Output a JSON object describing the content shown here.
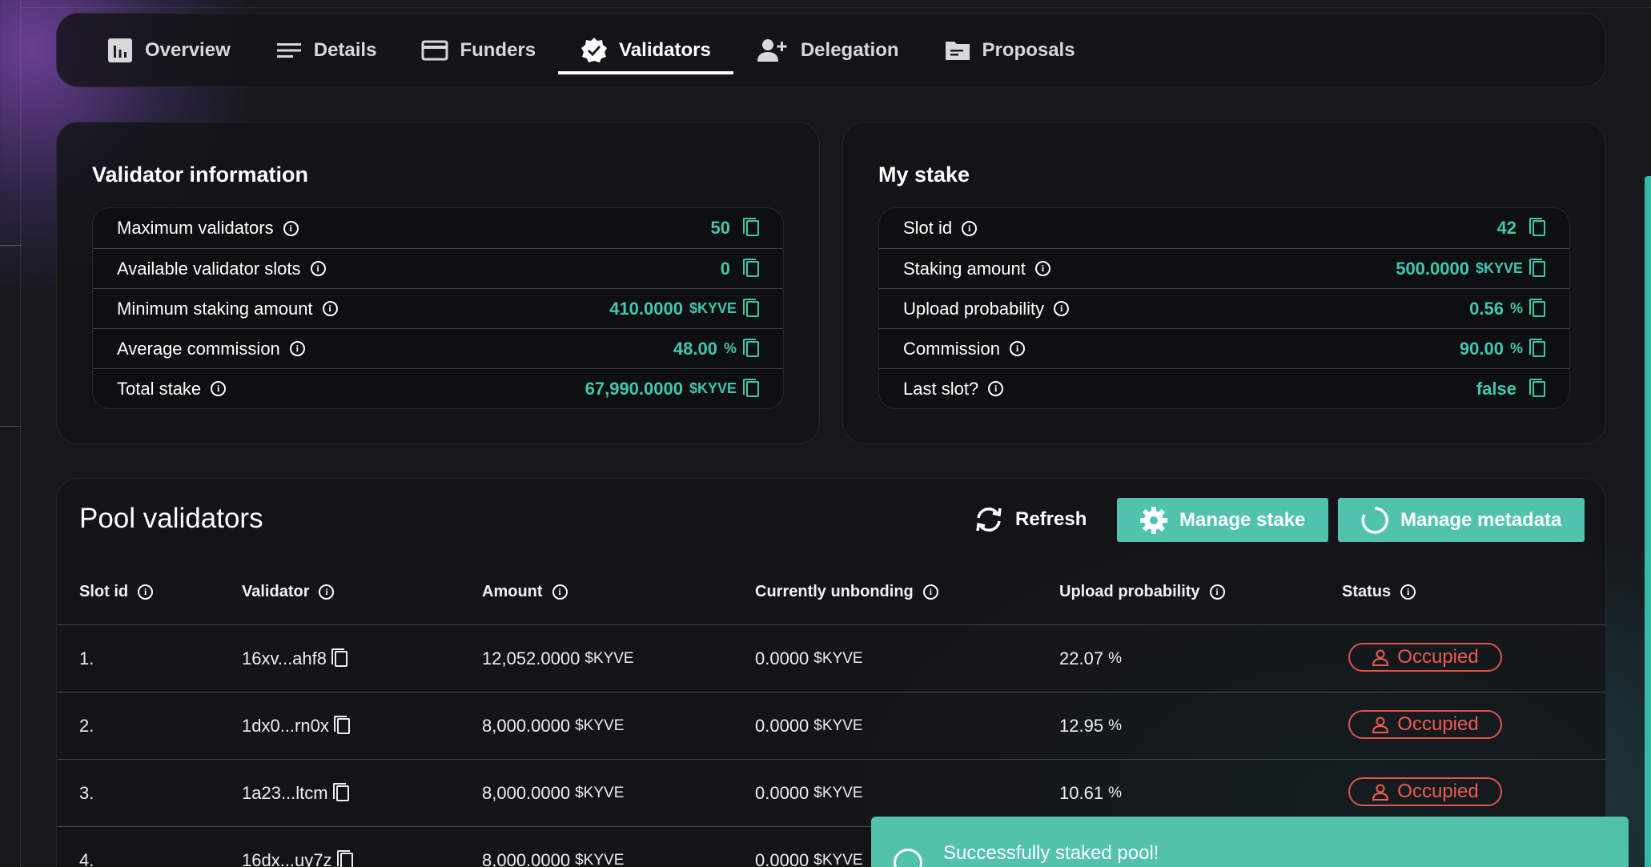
{
  "tabs": [
    {
      "label": "Overview",
      "icon": "bar-chart-icon"
    },
    {
      "label": "Details",
      "icon": "lines-icon"
    },
    {
      "label": "Funders",
      "icon": "card-icon"
    },
    {
      "label": "Validators",
      "icon": "verified-badge-icon",
      "active": true
    },
    {
      "label": "Delegation",
      "icon": "add-user-icon"
    },
    {
      "label": "Proposals",
      "icon": "folder-icon"
    }
  ],
  "validator_info": {
    "title": "Validator information",
    "rows": [
      {
        "label": "Maximum validators",
        "value": "50",
        "unit": ""
      },
      {
        "label": "Available validator slots",
        "value": "0",
        "unit": ""
      },
      {
        "label": "Minimum staking amount",
        "value": "410.0000",
        "unit": "$KYVE"
      },
      {
        "label": "Average commission",
        "value": "48.00",
        "unit": "%"
      },
      {
        "label": "Total stake",
        "value": "67,990.0000",
        "unit": "$KYVE"
      }
    ]
  },
  "my_stake": {
    "title": "My stake",
    "rows": [
      {
        "label": "Slot id",
        "value": "42",
        "unit": ""
      },
      {
        "label": "Staking amount",
        "value": "500.0000",
        "unit": "$KYVE"
      },
      {
        "label": "Upload probability",
        "value": "0.56",
        "unit": "%"
      },
      {
        "label": "Commission",
        "value": "90.00",
        "unit": "%"
      },
      {
        "label": "Last slot?",
        "value": "false",
        "unit": ""
      }
    ]
  },
  "pool": {
    "title": "Pool validators",
    "refresh_label": "Refresh",
    "manage_stake_label": "Manage stake",
    "manage_metadata_label": "Manage metadata",
    "columns": [
      "Slot id",
      "Validator",
      "Amount",
      "Currently unbonding",
      "Upload probability",
      "Status"
    ],
    "rows": [
      {
        "slot": "1.",
        "validator": "16xv...ahf8",
        "amount": "12,052.0000",
        "unbonding": "0.0000",
        "probability": "22.07",
        "status": "Occupied"
      },
      {
        "slot": "2.",
        "validator": "1dx0...rn0x",
        "amount": "8,000.0000",
        "unbonding": "0.0000",
        "probability": "12.95",
        "status": "Occupied"
      },
      {
        "slot": "3.",
        "validator": "1a23...ltcm",
        "amount": "8,000.0000",
        "unbonding": "0.0000",
        "probability": "10.61",
        "status": "Occupied"
      },
      {
        "slot": "4.",
        "validator": "16dx...uy7z",
        "amount": "8,000.0000",
        "unbonding": "0.0000",
        "probability": "",
        "status": ""
      }
    ],
    "currency": "$KYVE",
    "percent": "%"
  },
  "toast": {
    "message": "Successfully staked pool!"
  },
  "colors": {
    "accent": "#4fc3ad",
    "value": "#3fc7b1",
    "occupied": "#ef5a54"
  }
}
